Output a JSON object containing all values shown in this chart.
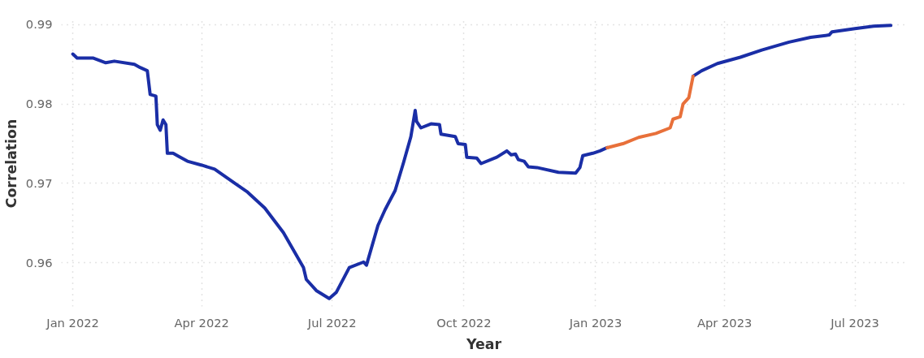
{
  "chart_data": {
    "type": "line",
    "xlabel": "Year",
    "ylabel": "Correlation",
    "xlim": [
      "2021-12-24",
      "2023-08-06"
    ],
    "ylim": [
      0.9545,
      0.9905
    ],
    "xticks": [
      {
        "value": "2022-01-01",
        "label": "Jan 2022"
      },
      {
        "value": "2022-04-01",
        "label": "Apr 2022"
      },
      {
        "value": "2022-07-01",
        "label": "Jul 2022"
      },
      {
        "value": "2022-10-01",
        "label": "Oct 2022"
      },
      {
        "value": "2023-01-01",
        "label": "Jan 2023"
      },
      {
        "value": "2023-04-01",
        "label": "Apr 2023"
      },
      {
        "value": "2023-07-01",
        "label": "Jul 2023"
      }
    ],
    "yticks": [
      0.96,
      0.97,
      0.98,
      0.99
    ],
    "grid": true,
    "line_style": "solid",
    "series": [
      {
        "color": "#1a2ea6",
        "x": [
          "2022-01-01",
          "2022-01-04",
          "2022-01-15",
          "2022-01-24",
          "2022-01-30",
          "2022-02-13",
          "2022-02-17",
          "2022-02-22",
          "2022-02-24",
          "2022-02-28",
          "2022-03-01",
          "2022-03-03",
          "2022-03-05",
          "2022-03-07",
          "2022-03-08",
          "2022-03-12",
          "2022-03-16",
          "2022-03-22",
          "2022-04-01",
          "2022-04-10",
          "2022-04-25",
          "2022-05-03",
          "2022-05-15",
          "2022-05-28",
          "2022-06-11",
          "2022-06-13",
          "2022-06-20",
          "2022-06-29",
          "2022-07-04",
          "2022-07-13",
          "2022-07-23",
          "2022-07-25",
          "2022-08-02",
          "2022-08-07",
          "2022-08-14",
          "2022-08-20",
          "2022-08-25",
          "2022-08-28",
          "2022-08-29",
          "2022-09-01",
          "2022-09-08",
          "2022-09-14",
          "2022-09-15",
          "2022-09-25",
          "2022-09-27",
          "2022-10-02",
          "2022-10-03",
          "2022-10-10",
          "2022-10-13",
          "2022-10-24",
          "2022-10-31",
          "2022-11-03",
          "2022-11-06",
          "2022-11-08",
          "2022-11-12",
          "2022-11-15",
          "2022-11-21",
          "2022-12-06",
          "2022-12-18",
          "2022-12-21",
          "2022-12-23",
          "2022-12-30",
          "2023-01-04",
          "2023-01-09",
          "2023-02-10",
          "2023-03-10",
          "2023-03-16",
          "2023-03-27",
          "2023-04-12",
          "2023-04-27",
          "2023-05-16",
          "2023-05-31",
          "2023-06-13",
          "2023-06-15",
          "2023-07-01",
          "2023-07-14",
          "2023-07-26"
        ],
        "values": [
          0.9863,
          0.9858,
          0.9858,
          0.9852,
          0.9854,
          0.985,
          0.9846,
          0.9842,
          0.9812,
          0.981,
          0.9774,
          0.9767,
          0.978,
          0.9774,
          0.9738,
          0.9738,
          0.9734,
          0.9728,
          0.9723,
          0.9718,
          0.9699,
          0.9689,
          0.9669,
          0.9638,
          0.9594,
          0.9579,
          0.9565,
          0.9555,
          0.9563,
          0.9594,
          0.9601,
          0.9597,
          0.9647,
          0.9667,
          0.9691,
          0.9727,
          0.9759,
          0.9792,
          0.9778,
          0.977,
          0.9775,
          0.9774,
          0.9762,
          0.9759,
          0.975,
          0.9749,
          0.9733,
          0.9732,
          0.9725,
          0.9733,
          0.9741,
          0.9736,
          0.9737,
          0.973,
          0.9728,
          0.9721,
          0.972,
          0.9714,
          0.9713,
          0.972,
          0.9735,
          0.9738,
          0.9741,
          0.9745,
          null,
          0.9835,
          0.9842,
          0.9851,
          0.9859,
          0.9868,
          0.9878,
          0.9884,
          0.9887,
          0.9891,
          0.9895,
          0.9898,
          0.9899
        ]
      },
      {
        "color": "#e8703a",
        "x": [
          "2023-01-09",
          "2023-01-20",
          "2023-01-31",
          "2023-02-12",
          "2023-02-22",
          "2023-02-24",
          "2023-03-01",
          "2023-03-03",
          "2023-03-07",
          "2023-03-10"
        ],
        "values": [
          0.9745,
          0.975,
          0.9758,
          0.9763,
          0.977,
          0.9781,
          0.9784,
          0.98,
          0.9808,
          0.9835
        ]
      }
    ]
  }
}
